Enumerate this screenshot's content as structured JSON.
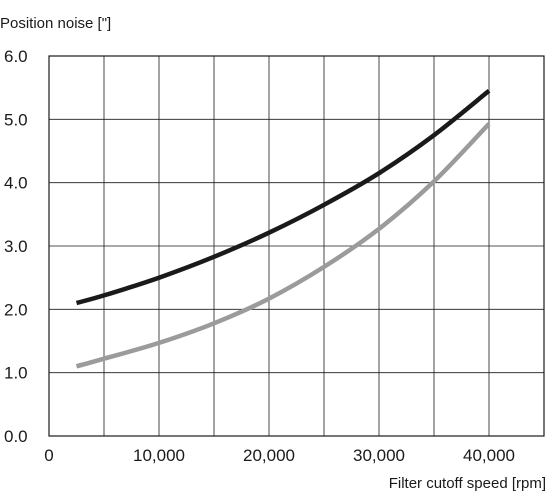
{
  "chart_data": {
    "type": "line",
    "ylabel": "Position noise [\"]",
    "xlabel": "Filter cutoff speed [rpm]",
    "xlim": [
      0,
      45000
    ],
    "ylim": [
      0,
      6
    ],
    "grid": true,
    "xticks": [
      0,
      5000,
      10000,
      15000,
      20000,
      25000,
      30000,
      35000,
      40000,
      45000
    ],
    "yticks": [
      0,
      1,
      2,
      3,
      4,
      5,
      6
    ],
    "xtick_labels": [
      {
        "value": 0,
        "label": "0"
      },
      {
        "value": 10000,
        "label": "10,000"
      },
      {
        "value": 20000,
        "label": "20,000"
      },
      {
        "value": 30000,
        "label": "30,000"
      },
      {
        "value": 40000,
        "label": "40,000"
      }
    ],
    "ytick_labels": [
      {
        "value": 0,
        "label": "0.0"
      },
      {
        "value": 1,
        "label": "1.0"
      },
      {
        "value": 2,
        "label": "2.0"
      },
      {
        "value": 3,
        "label": "3.0"
      },
      {
        "value": 4,
        "label": "4.0"
      },
      {
        "value": 5,
        "label": "5.0"
      },
      {
        "value": 6,
        "label": "6.0"
      }
    ],
    "series": [
      {
        "color": "#1a1a1a",
        "x": [
          2500,
          5000,
          10000,
          15000,
          20000,
          25000,
          30000,
          35000,
          40000
        ],
        "y": [
          2.1,
          2.22,
          2.5,
          2.83,
          3.21,
          3.65,
          4.15,
          4.75,
          5.45
        ]
      },
      {
        "color": "#9b9b9b",
        "x": [
          2500,
          5000,
          10000,
          15000,
          20000,
          25000,
          30000,
          35000,
          40000
        ],
        "y": [
          1.1,
          1.22,
          1.47,
          1.78,
          2.17,
          2.67,
          3.27,
          4.02,
          4.93
        ]
      }
    ]
  }
}
